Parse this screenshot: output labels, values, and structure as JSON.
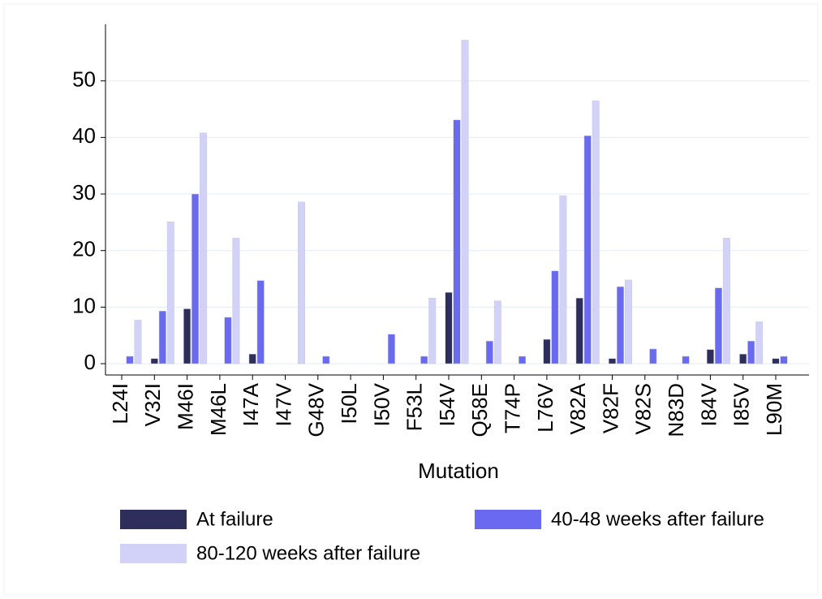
{
  "chart_data": {
    "type": "bar",
    "x_label": "Mutation",
    "categories": [
      "L24I",
      "V32I",
      "M46I",
      "M46L",
      "I47A",
      "I47V",
      "G48V",
      "I50L",
      "I50V",
      "F53L",
      "I54V",
      "Q58E",
      "T74P",
      "L76V",
      "V82A",
      "V82F",
      "V82S",
      "N83D",
      "I84V",
      "I85V",
      "L90M"
    ],
    "series": [
      {
        "name": "At failure",
        "color": "#2e2e5a",
        "values": [
          0,
          0.9,
          9.7,
          0,
          1.7,
          0,
          0,
          0,
          0,
          0,
          12.6,
          0,
          0,
          4.3,
          11.6,
          0.9,
          0,
          0,
          2.5,
          1.7,
          0.9
        ]
      },
      {
        "name": "40-48 weeks after failure",
        "color": "#6a6af0",
        "values": [
          1.3,
          9.3,
          30,
          8.2,
          14.7,
          0,
          1.3,
          0,
          5.2,
          1.3,
          43.1,
          4,
          1.3,
          16.4,
          40.3,
          13.6,
          2.6,
          1.3,
          13.4,
          4,
          1.3
        ]
      },
      {
        "name": "80-120 weeks after failure",
        "color": "#d2d2f8",
        "values": [
          7.7,
          25.1,
          40.8,
          22.2,
          0,
          28.6,
          0,
          0,
          0,
          11.6,
          57.2,
          11.1,
          0,
          29.7,
          46.5,
          14.8,
          0,
          0,
          22.2,
          7.4,
          0
        ]
      }
    ],
    "ylim": [
      -2,
      60
    ],
    "yticks": [
      0,
      10,
      20,
      30,
      40,
      50
    ],
    "grid": true
  }
}
